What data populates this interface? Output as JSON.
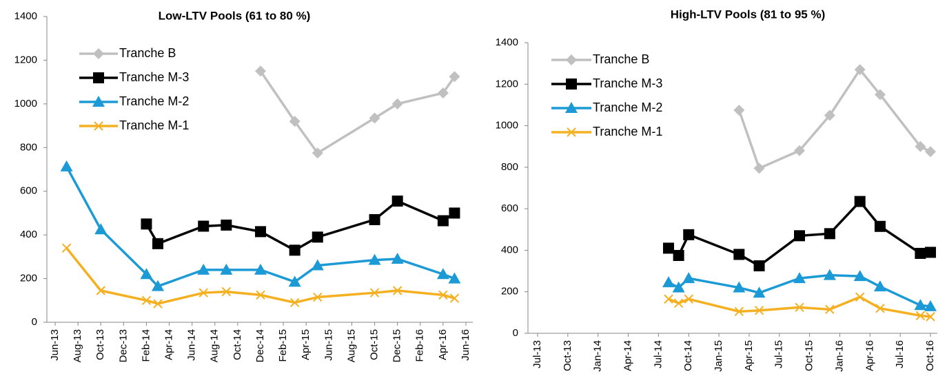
{
  "chart_data": [
    {
      "type": "line",
      "title": "Low-LTV Pools (61 to 80 %)",
      "xlim": [
        "Jun-13",
        "Jun-16"
      ],
      "xticks": [
        "Jun-13",
        "Aug-13",
        "Oct-13",
        "Dec-13",
        "Feb-14",
        "Apr-14",
        "Jun-14",
        "Aug-14",
        "Oct-14",
        "Dec-14",
        "Feb-15",
        "Apr-15",
        "Jun-15",
        "Aug-15",
        "Oct-15",
        "Dec-15",
        "Feb-16",
        "Apr-16",
        "Jun-16"
      ],
      "ylim": [
        0,
        1400
      ],
      "yticks": [
        0,
        200,
        400,
        600,
        800,
        1000,
        1200,
        1400
      ],
      "series": [
        {
          "name": "Tranche B",
          "color": "#c0c0c0",
          "marker": "diamond",
          "x": [
            "Dec-14",
            "Mar-15",
            "May-15",
            "Oct-15",
            "Dec-15",
            "Apr-16",
            "May-16"
          ],
          "values": [
            1150,
            920,
            775,
            935,
            1000,
            1050,
            1125
          ]
        },
        {
          "name": "Tranche M-3",
          "color": "#000000",
          "marker": "square",
          "x": [
            "Feb-14",
            "Mar-14",
            "Jul-14",
            "Sep-14",
            "Dec-14",
            "Mar-15",
            "May-15",
            "Oct-15",
            "Dec-15",
            "Apr-16",
            "May-16"
          ],
          "values": [
            450,
            360,
            440,
            445,
            415,
            330,
            390,
            470,
            555,
            465,
            500
          ]
        },
        {
          "name": "Tranche M-2",
          "color": "#1c9ad6",
          "marker": "triangle",
          "x": [
            "Jul-13",
            "Oct-13",
            "Feb-14",
            "Mar-14",
            "Jul-14",
            "Sep-14",
            "Dec-14",
            "Mar-15",
            "May-15",
            "Oct-15",
            "Dec-15",
            "Apr-16",
            "May-16"
          ],
          "values": [
            713,
            425,
            220,
            165,
            240,
            240,
            240,
            185,
            260,
            285,
            290,
            220,
            200
          ]
        },
        {
          "name": "Tranche M-1",
          "color": "#f5b021",
          "marker": "x",
          "x": [
            "Jul-13",
            "Oct-13",
            "Feb-14",
            "Mar-14",
            "Jul-14",
            "Sep-14",
            "Dec-14",
            "Mar-15",
            "May-15",
            "Oct-15",
            "Dec-15",
            "Apr-16",
            "May-16"
          ],
          "values": [
            340,
            145,
            100,
            85,
            135,
            140,
            125,
            90,
            115,
            135,
            145,
            125,
            110
          ]
        }
      ]
    },
    {
      "type": "line",
      "title": "High-LTV Pools (81 to 95 %)",
      "xlim": [
        "Jul-13",
        "Oct-16"
      ],
      "xticks": [
        "Jul-13",
        "Oct-13",
        "Jan-14",
        "Apr-14",
        "Jul-14",
        "Oct-14",
        "Jan-15",
        "Apr-15",
        "Jul-15",
        "Oct-15",
        "Jan-16",
        "Apr-16",
        "Jul-16",
        "Oct-16"
      ],
      "ylim": [
        0,
        1400
      ],
      "yticks": [
        0,
        200,
        400,
        600,
        800,
        1000,
        1200,
        1400
      ],
      "series": [
        {
          "name": "Tranche B",
          "color": "#c0c0c0",
          "marker": "diamond",
          "x": [
            "Mar-15",
            "May-15",
            "Sep-15",
            "Dec-15",
            "Mar-16",
            "May-16",
            "Sep-16",
            "Oct-16"
          ],
          "values": [
            1075,
            795,
            880,
            1050,
            1270,
            1150,
            900,
            875
          ]
        },
        {
          "name": "Tranche M-3",
          "color": "#000000",
          "marker": "square",
          "x": [
            "Aug-14",
            "Sep-14",
            "Oct-14",
            "Mar-15",
            "May-15",
            "Sep-15",
            "Dec-15",
            "Mar-16",
            "May-16",
            "Sep-16",
            "Oct-16"
          ],
          "values": [
            410,
            375,
            475,
            380,
            325,
            470,
            480,
            635,
            515,
            385,
            390
          ]
        },
        {
          "name": "Tranche M-2",
          "color": "#1c9ad6",
          "marker": "triangle",
          "x": [
            "Aug-14",
            "Sep-14",
            "Oct-14",
            "Mar-15",
            "May-15",
            "Sep-15",
            "Dec-15",
            "Mar-16",
            "May-16",
            "Sep-16",
            "Oct-16"
          ],
          "values": [
            245,
            220,
            265,
            220,
            195,
            265,
            280,
            275,
            225,
            135,
            130
          ]
        },
        {
          "name": "Tranche M-1",
          "color": "#f5b021",
          "marker": "x",
          "x": [
            "Aug-14",
            "Sep-14",
            "Oct-14",
            "Mar-15",
            "May-15",
            "Sep-15",
            "Dec-15",
            "Mar-16",
            "May-16",
            "Sep-16",
            "Oct-16"
          ],
          "values": [
            165,
            145,
            165,
            105,
            110,
            125,
            115,
            175,
            120,
            85,
            80
          ]
        }
      ]
    }
  ]
}
